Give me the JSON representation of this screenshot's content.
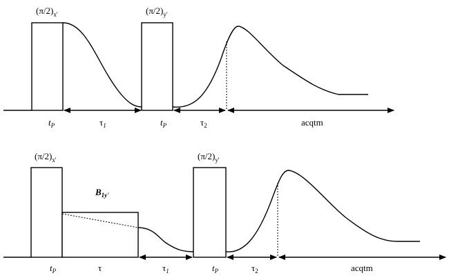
{
  "panels": [
    {
      "pulses": [
        {
          "label": "(π/2)",
          "sub": "x'"
        },
        {
          "label": "(π/2)",
          "sub": "y'"
        }
      ],
      "intervals": [
        {
          "label": "t",
          "sub": "P"
        },
        {
          "label": "τ",
          "sub": "1"
        },
        {
          "label": "t",
          "sub": "P"
        },
        {
          "label": "τ",
          "sub": "2"
        },
        {
          "label": "acqtm"
        }
      ]
    },
    {
      "pulses": [
        {
          "label": "(π/2)",
          "sub": "x'"
        },
        {
          "label": "(π/2)",
          "sub": "y'"
        }
      ],
      "field": {
        "label": "B",
        "sub": "1y'"
      },
      "intervals": [
        {
          "label": "t",
          "sub": "P"
        },
        {
          "label": "τ"
        },
        {
          "label": "τ",
          "sub": "1"
        },
        {
          "label": "t",
          "sub": "P"
        },
        {
          "label": "τ",
          "sub": "2"
        },
        {
          "label": "acqtm"
        }
      ]
    }
  ]
}
